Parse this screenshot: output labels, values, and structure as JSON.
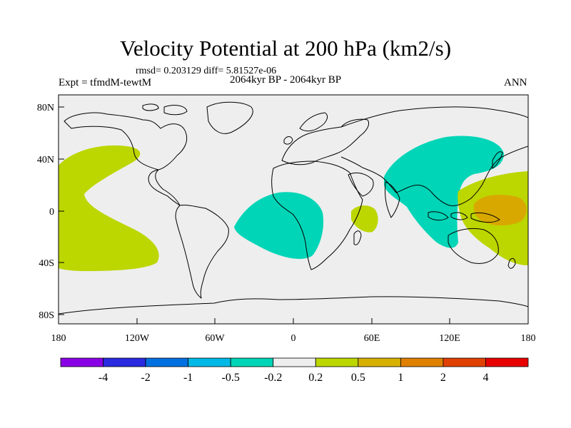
{
  "title": "Velocity Potential at 200 hPa (km2/s)",
  "stats_line": "rmsd= 0.203129 diff= 5.81527e-06",
  "left_label": "Expt = tfmdM-tewtM",
  "center_label": "2064kyr BP - 2064kyr BP",
  "right_label": "ANN",
  "y_ticks": [
    "80N",
    "40N",
    "0",
    "40S",
    "80S"
  ],
  "x_ticks": [
    "180",
    "120W",
    "60W",
    "0",
    "60E",
    "120E",
    "180"
  ],
  "colors": {
    "background": "#ffffff",
    "land_fill": "#eeeeee",
    "coast": "#000000",
    "neg_02": "#00d5b7",
    "pos_02": "#bcd600",
    "pos_05": "#d8a800"
  },
  "colorbar": {
    "colors": [
      "#8a00e6",
      "#2a2ae0",
      "#0070e0",
      "#00b9e6",
      "#00d5b7",
      "#eeeeee",
      "#bcd600",
      "#d8b000",
      "#e08000",
      "#e04000",
      "#e80000"
    ],
    "labels": [
      "-4",
      "-2",
      "-1",
      "-0.5",
      "-0.2",
      "0.2",
      "0.5",
      "1",
      "2",
      "4"
    ]
  }
}
